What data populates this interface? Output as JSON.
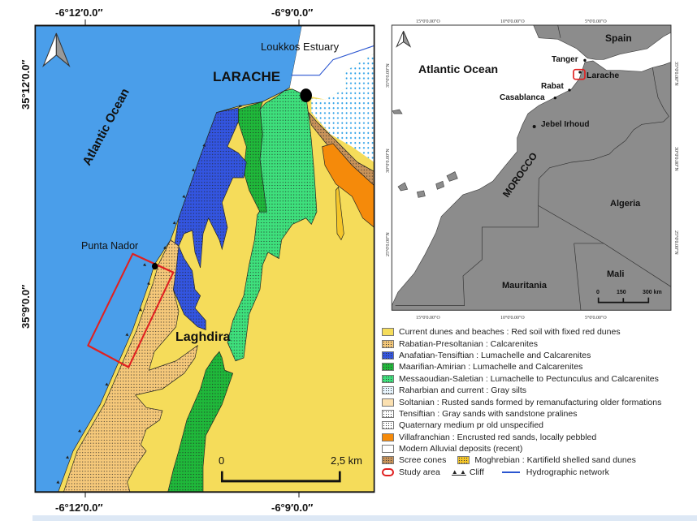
{
  "main_map": {
    "coords_top": [
      "-6°12′0.0″",
      "-6°9′0.0″"
    ],
    "coords_bottom": [
      "-6°12′0.0″",
      "-6°9′0.0″"
    ],
    "coords_left": [
      "35°12′0.0″",
      "35°9′0.0″"
    ],
    "labels": {
      "ocean": "Atlantic Ocean",
      "city": "LARACHE",
      "estuary": "Loukkos Estuary",
      "point": "Punta Nador",
      "village": "Laghdira"
    },
    "scale_bar": {
      "start": "0",
      "end": "2,5 km"
    },
    "north_arrow": "north-arrow-icon"
  },
  "inset_map": {
    "coords_top": [
      "15°0'0.00\"O",
      "10°0'0.00\"O",
      "5°0'0.00\"O"
    ],
    "coords_bottom": [
      "15°0'0.00\"O",
      "10°0'0.00\"O",
      "5°0'0.00\"O"
    ],
    "coords_side": [
      "35°0'0.00\"N",
      "30°0'0.00\"N",
      "25°0'0.00\"N"
    ],
    "labels": {
      "ocean": "Atlantic Ocean",
      "spain": "Spain",
      "tanger": "Tanger",
      "larache": "Larache",
      "rabat": "Rabat",
      "casablanca": "Casablanca",
      "jebel": "Jebel Irhoud",
      "morocco": "MOROCCO",
      "algeria": "Algeria",
      "mauritania": "Mauritania",
      "mali": "Mali"
    },
    "scale_bar": [
      "0",
      "150",
      "300 km"
    ]
  },
  "legend": {
    "items": [
      {
        "label": "Current dunes and beaches : Red soil with fixed red dunes",
        "color": "#f5dc5a",
        "dots": false
      },
      {
        "label": "Rabatian-Presoltanian : Calcarenites",
        "color": "#f5c87a",
        "dots": true
      },
      {
        "label": "Anafatian-Tensiftian : Lumachelle and Calcarenites",
        "color": "#3355e0",
        "dots": true
      },
      {
        "label": "Maarifian-Amirian : Lumachelle and Calcarenites",
        "color": "#1fb83a",
        "dots": true
      },
      {
        "label": "Messaoudian-Saletian : Lumachelle to Pectunculus and Calcarenites",
        "color": "#3ee07c",
        "dots": true
      },
      {
        "label": "Raharbian and current : Gray silts",
        "color": "#e8f6ff",
        "dots": true
      },
      {
        "label": "Soltanian : Rusted sands formed by remanufacturing older formations",
        "color": "#fbe0b0",
        "dots": false
      },
      {
        "label": "Tensiftian : Gray sands with sandstone pralines",
        "color": "#ffffff",
        "dots": true
      },
      {
        "label": "Quaternary medium pr old unspecified",
        "color": "#ffffff",
        "dots": true
      },
      {
        "label": "Villafranchian : Encrusted red sands, locally pebbled",
        "color": "#f58a0a",
        "dots": false
      },
      {
        "label": "Modern Alluvial deposits (recent)",
        "color": "#ffffff",
        "dots": false
      }
    ],
    "scree": {
      "label": "Scree cones",
      "color": "#c8935a"
    },
    "moghrebian": {
      "label": "Moghrebian : Kartifield shelled sand dunes",
      "color": "#f5c62a"
    },
    "study_area": "Study area",
    "cliff": "Cliff",
    "hydro": "Hydrographic network"
  },
  "colors": {
    "ocean": "#4a9eea",
    "land_inset": "#8c8c8c",
    "study_area": "#e02020",
    "hydro": "#2a55d0"
  }
}
